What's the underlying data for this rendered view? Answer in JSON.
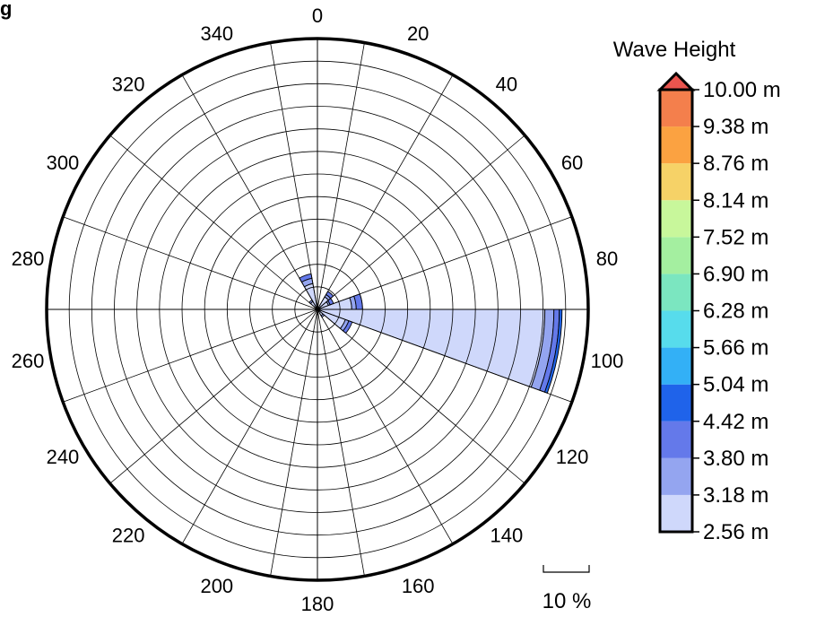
{
  "chart_data": {
    "type": "wind-rose",
    "title_fragment": "g",
    "direction_ticks": [
      "0",
      "20",
      "40",
      "60",
      "80",
      "100",
      "120",
      "140",
      "160",
      "180",
      "200",
      "220",
      "240",
      "260",
      "280",
      "300",
      "320",
      "340"
    ],
    "sector_width_deg": 20,
    "ring_step_percent": 2.5,
    "max_radius_percent": 30,
    "scale_bar": {
      "value": 10,
      "label": "10 %"
    },
    "colorbar": {
      "title": "Wave Height",
      "levels": [
        "10.00 m",
        "9.38 m",
        "8.76 m",
        "8.14 m",
        "7.52 m",
        "6.90 m",
        "6.28 m",
        "5.66 m",
        "5.04 m",
        "4.42 m",
        "3.80 m",
        "3.18 m",
        "2.56 m"
      ],
      "colors": [
        "#cfd8fb",
        "#94a5f0",
        "#6479ea",
        "#1f63ea",
        "#33b0f6",
        "#57dcec",
        "#7be6c0",
        "#a4efa0",
        "#c8f79b",
        "#f6d267",
        "#fba241",
        "#f47f4c",
        "#e9544e"
      ]
    },
    "sectors": [
      {
        "dir": 100,
        "bins": [
          {
            "bin": 0,
            "cum_percent": 25.2
          },
          {
            "bin": 1,
            "cum_percent": 26.2
          },
          {
            "bin": 2,
            "cum_percent": 26.8
          },
          {
            "bin": 3,
            "cum_percent": 27.1
          }
        ]
      },
      {
        "dir": 80,
        "bins": [
          {
            "bin": 0,
            "cum_percent": 3.8
          },
          {
            "bin": 1,
            "cum_percent": 4.3
          },
          {
            "bin": 2,
            "cum_percent": 5.0
          }
        ]
      },
      {
        "dir": 120,
        "bins": [
          {
            "bin": 0,
            "cum_percent": 3.3
          },
          {
            "bin": 1,
            "cum_percent": 3.7
          },
          {
            "bin": 2,
            "cum_percent": 4.1
          }
        ]
      },
      {
        "dir": 60,
        "bins": [
          {
            "bin": 0,
            "cum_percent": 1.3
          },
          {
            "bin": 1,
            "cum_percent": 1.5
          },
          {
            "bin": 2,
            "cum_percent": 1.9
          }
        ]
      },
      {
        "dir": 40,
        "bins": [
          {
            "bin": 0,
            "cum_percent": 1.6
          },
          {
            "bin": 1,
            "cum_percent": 1.9
          },
          {
            "bin": 2,
            "cum_percent": 2.3
          }
        ]
      },
      {
        "dir": 340,
        "bins": [
          {
            "bin": 0,
            "cum_percent": 2.9
          },
          {
            "bin": 1,
            "cum_percent": 3.5
          },
          {
            "bin": 2,
            "cum_percent": 4.0
          }
        ]
      },
      {
        "dir": 140,
        "bins": [
          {
            "bin": 0,
            "cum_percent": 0.8
          },
          {
            "bin": 1,
            "cum_percent": 1.0
          }
        ]
      },
      {
        "dir": 320,
        "bins": [
          {
            "bin": 0,
            "cum_percent": 1.0
          },
          {
            "bin": 1,
            "cum_percent": 1.2
          }
        ]
      }
    ]
  }
}
